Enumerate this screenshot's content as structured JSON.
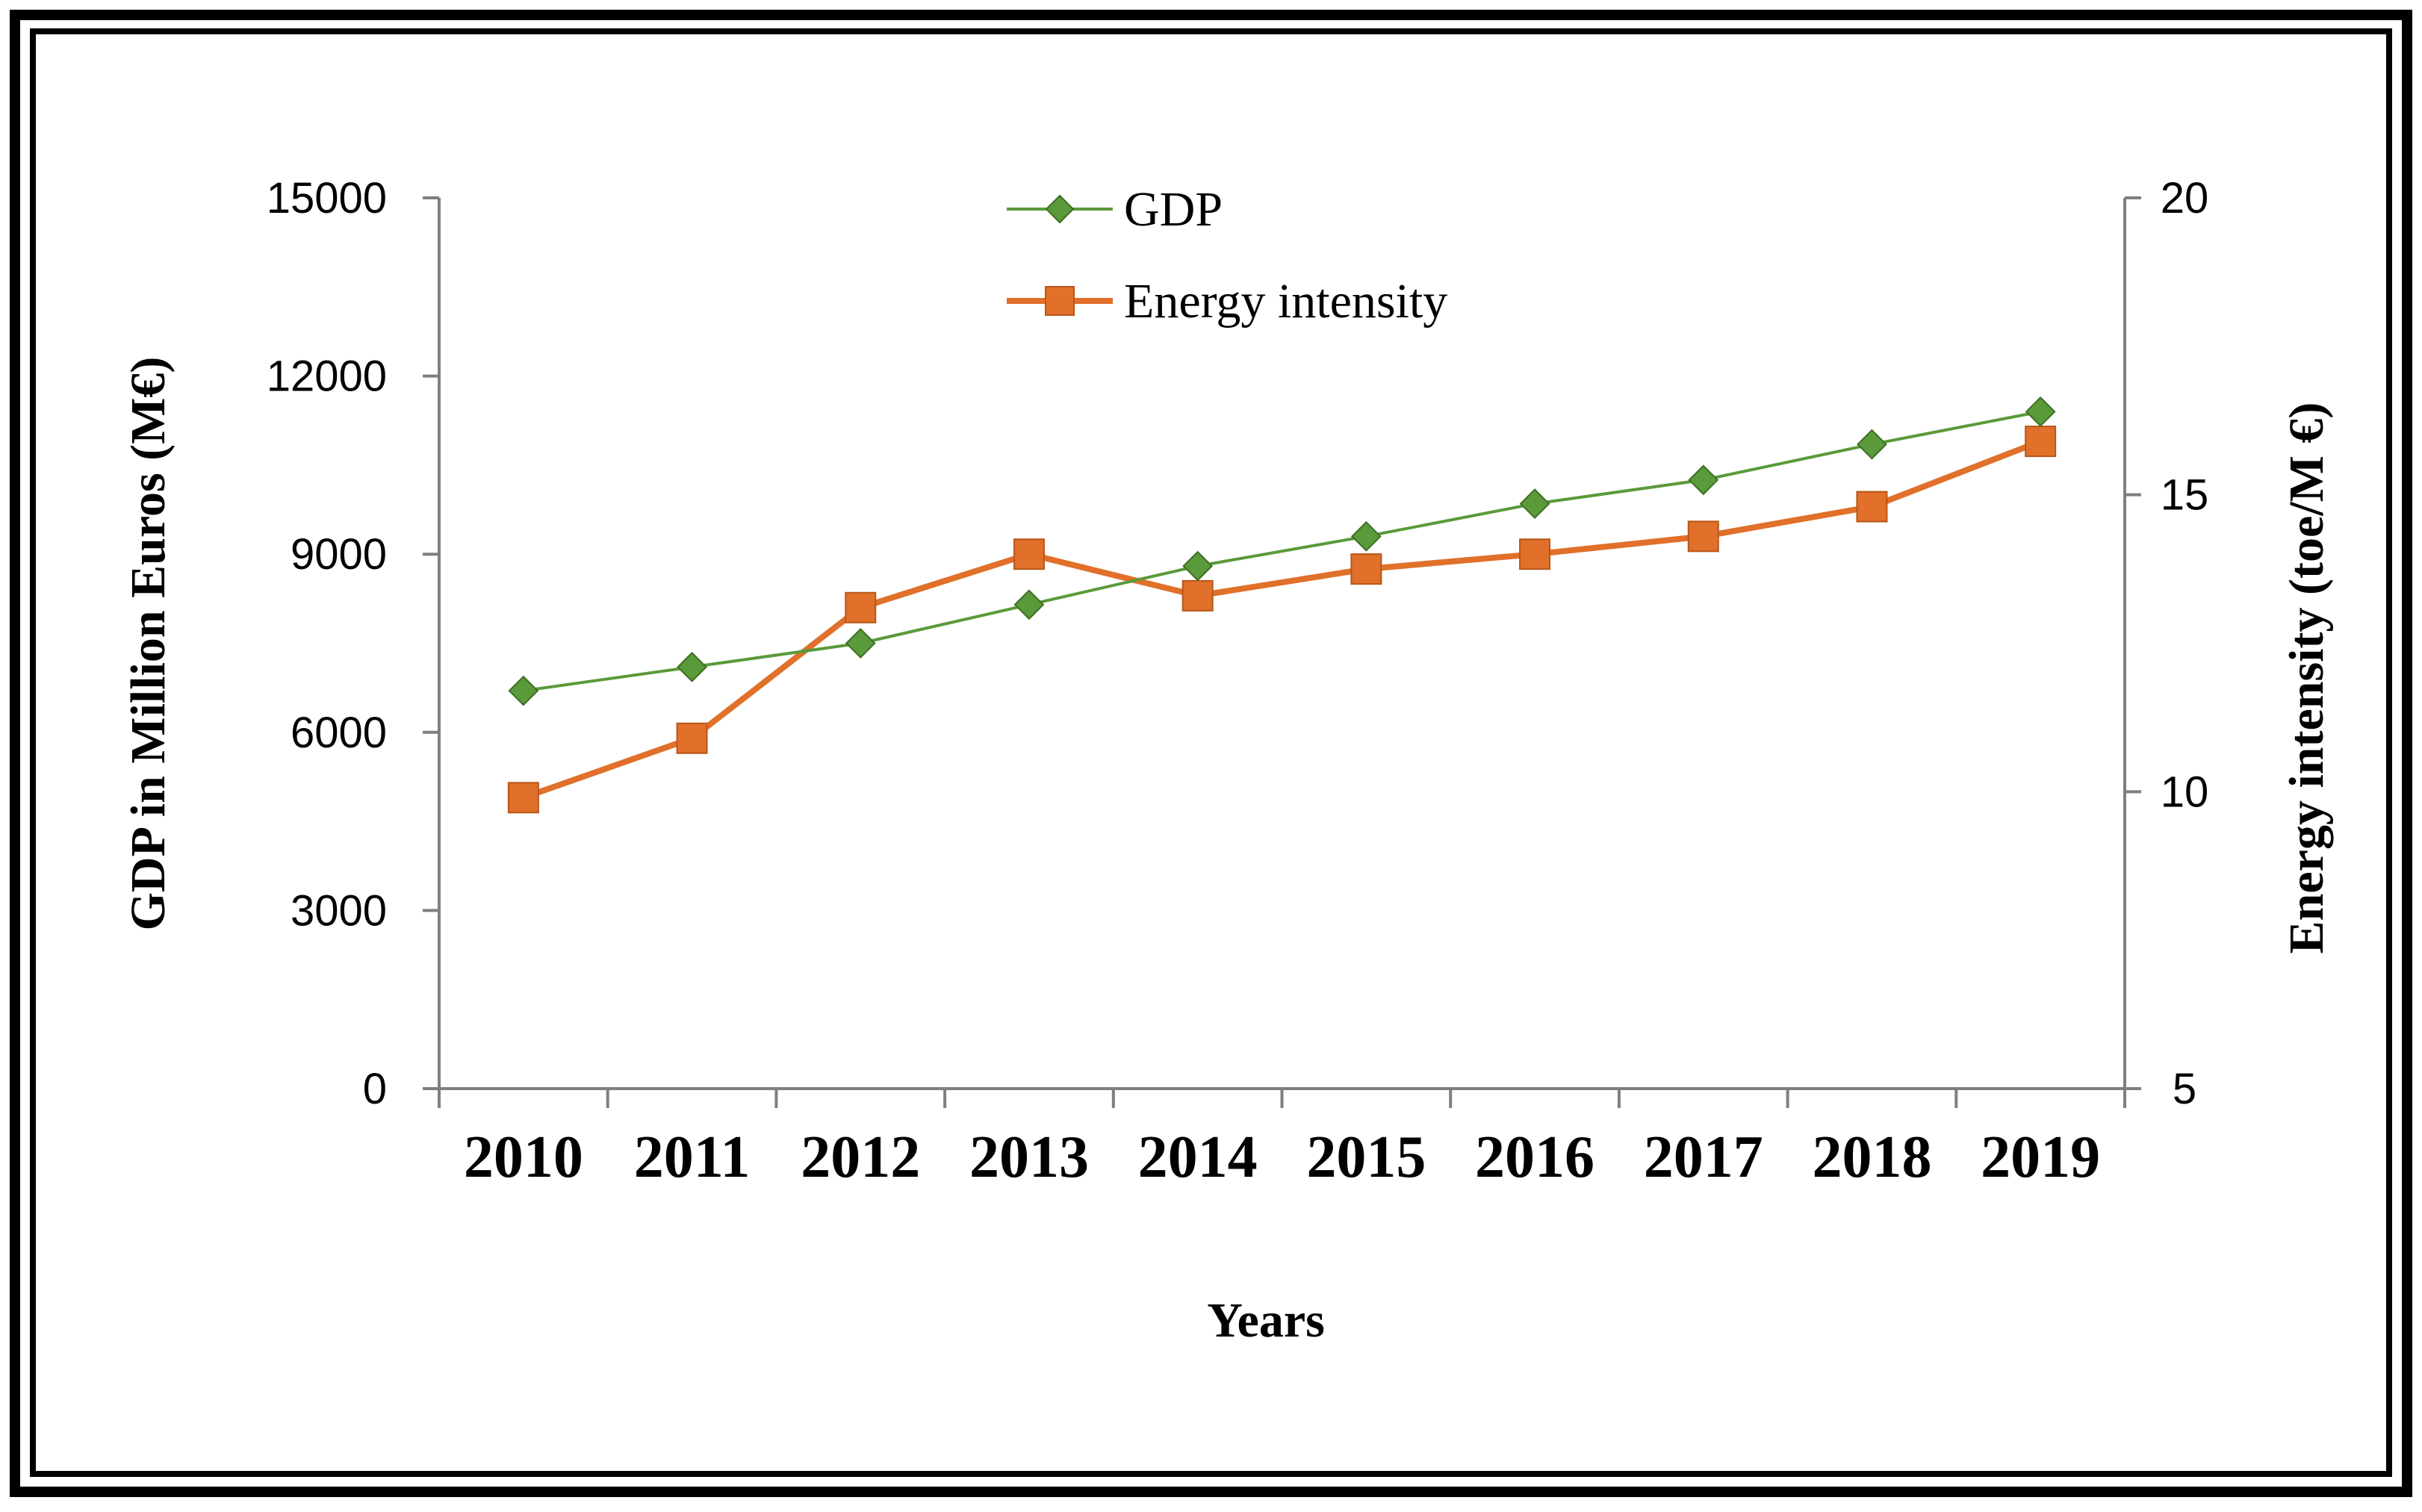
{
  "chart_data": {
    "type": "line",
    "title": "",
    "categories": [
      "2010",
      "2011",
      "2012",
      "2013",
      "2014",
      "2015",
      "2016",
      "2017",
      "2018",
      "2019"
    ],
    "xlabel": "Years",
    "ylabel": "GDP in Million Euros (M€)",
    "y2label": "Energy intensity (toe/M €)",
    "ylim": [
      0,
      15000
    ],
    "y2lim": [
      5,
      20
    ],
    "yticks": [
      "0",
      "3000",
      "6000",
      "9000",
      "12000",
      "15000"
    ],
    "y2ticks": [
      "5",
      "10",
      "15",
      "20"
    ],
    "legend_position": "top-center",
    "series": [
      {
        "name": "GDP",
        "axis": "left",
        "marker": "diamond",
        "color": "#5a9a3a",
        "values": [
          6700,
          7100,
          7500,
          8150,
          8800,
          9300,
          9850,
          10250,
          10850,
          11400
        ]
      },
      {
        "name": "Energy intensity",
        "axis": "right",
        "marker": "square",
        "color": "#e0702a",
        "values": [
          9.9,
          10.9,
          13.1,
          14.0,
          13.3,
          13.75,
          14.0,
          14.3,
          14.8,
          15.9
        ]
      }
    ]
  }
}
